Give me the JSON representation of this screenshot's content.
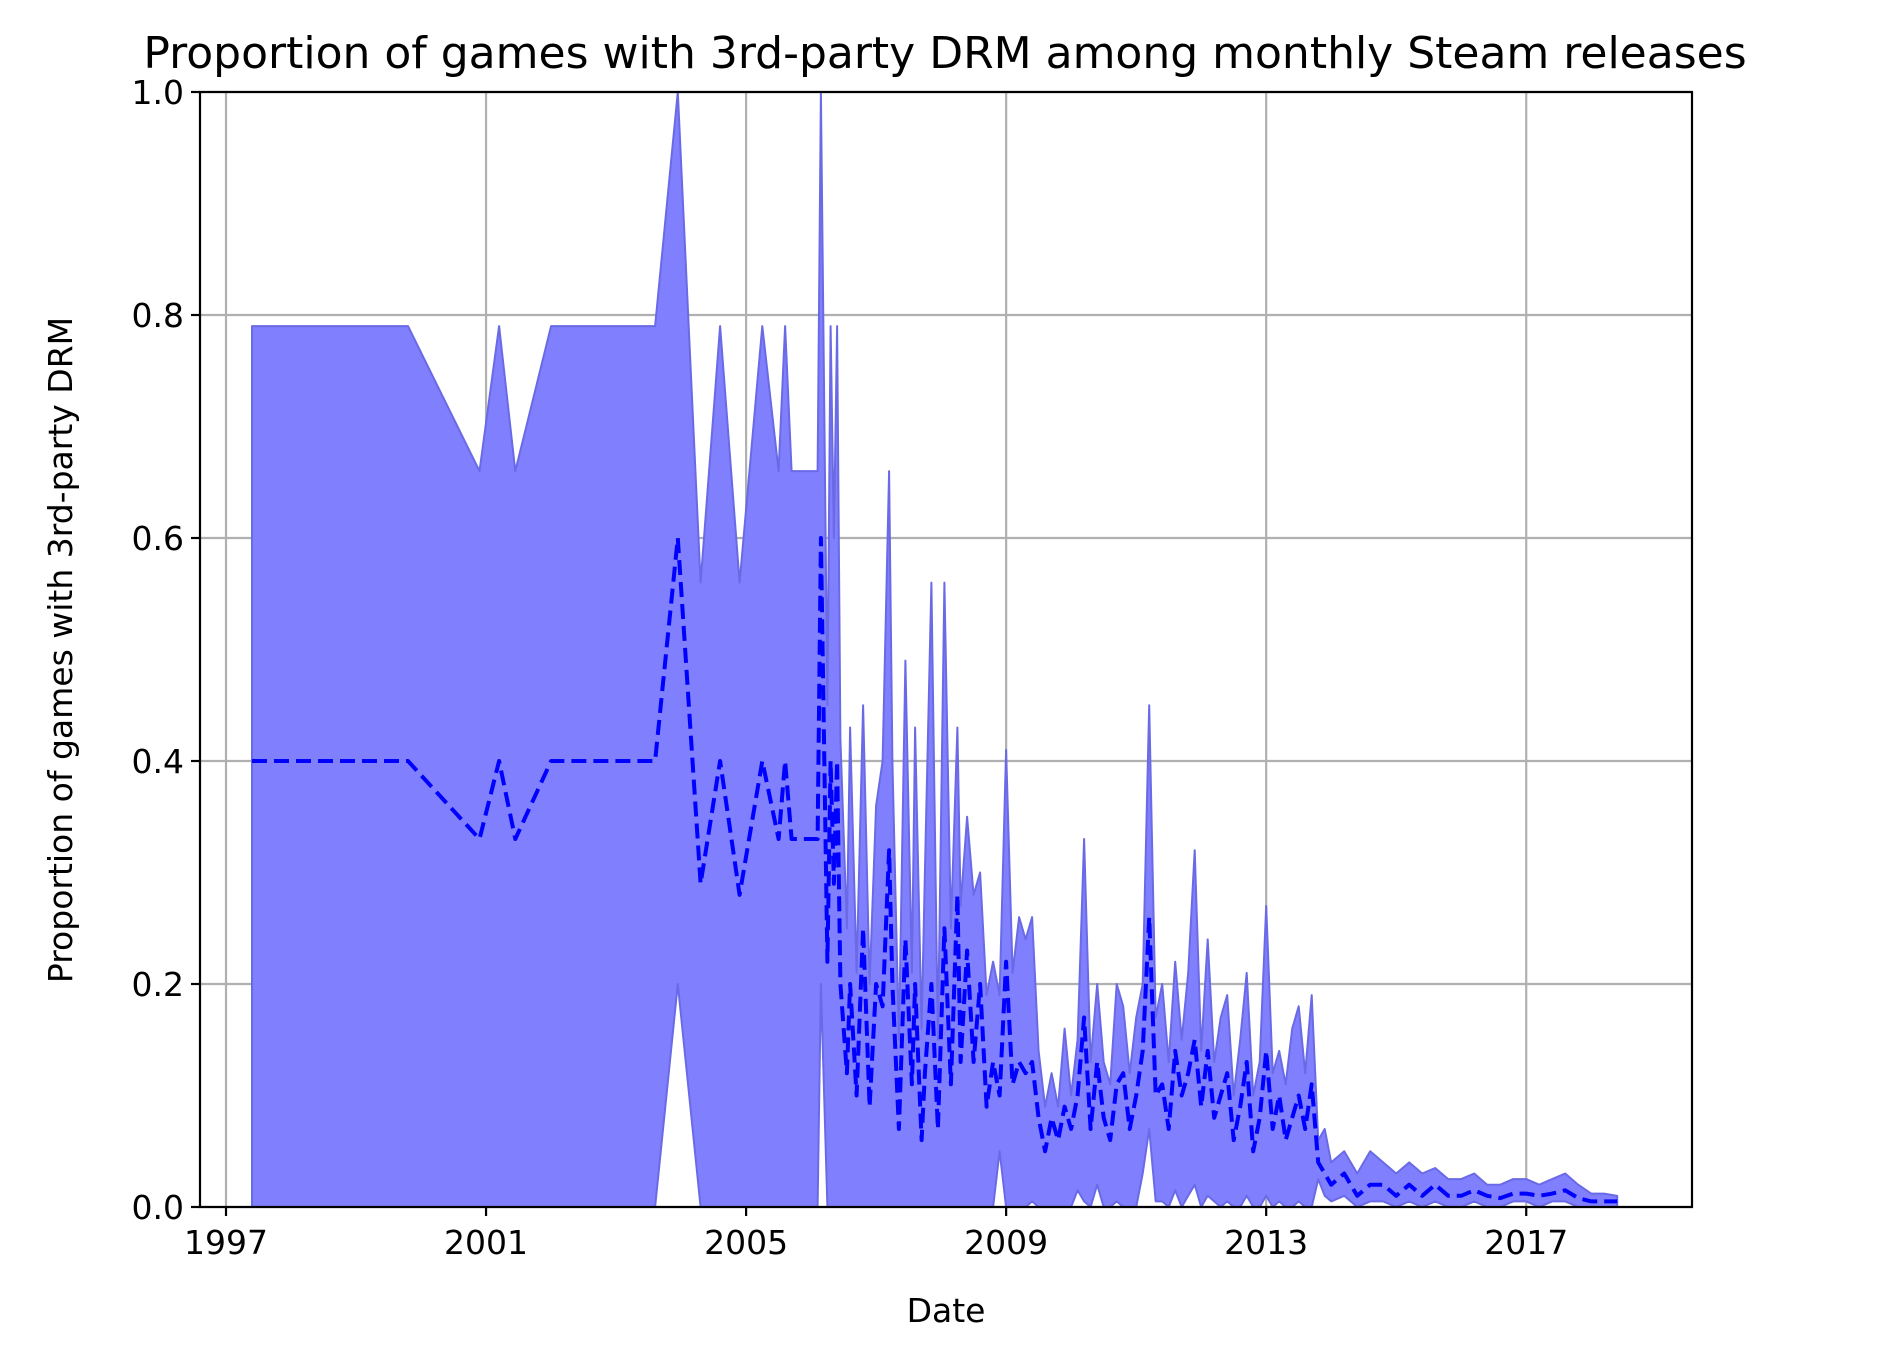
{
  "chart_data": {
    "type": "area",
    "title": "Proportion of games with 3rd-party DRM among monthly Steam releases",
    "xlabel": "Date",
    "ylabel": "Proportion of games with 3rd-party DRM",
    "xlim": [
      1996.6,
      2019.55
    ],
    "ylim": [
      0.0,
      1.0
    ],
    "grid": true,
    "x_ticks": [
      "1997",
      "2001",
      "2005",
      "2009",
      "2013",
      "2017"
    ],
    "y_ticks": [
      "0.0",
      "0.2",
      "0.4",
      "0.6",
      "0.8",
      "1.0"
    ],
    "colors": {
      "fill": "#8080ff",
      "edge": "#6a6ae6",
      "line": "#0000ff"
    },
    "series": [
      {
        "kind": "mean",
        "style": "dashed",
        "x": [
          1997.4,
          1999.8,
          2000.9,
          2001.2,
          2001.45,
          2002.0,
          2003.6,
          2003.95,
          2004.3,
          2004.6,
          2004.9,
          2005.25,
          2005.5,
          2005.6,
          2005.7,
          2005.85,
          2006.1,
          2006.15,
          2006.25,
          2006.3,
          2006.35,
          2006.4,
          2006.45,
          2006.55,
          2006.6,
          2006.7,
          2006.8,
          2006.9,
          2007.0,
          2007.1,
          2007.2,
          2007.25,
          2007.35,
          2007.45,
          2007.55,
          2007.6,
          2007.7,
          2007.75,
          2007.85,
          2007.95,
          2008.05,
          2008.15,
          2008.25,
          2008.3,
          2008.4,
          2008.5,
          2008.6,
          2008.7,
          2008.8,
          2008.9,
          2009.0,
          2009.1,
          2009.2,
          2009.3,
          2009.4,
          2009.5,
          2009.6,
          2009.7,
          2009.8,
          2009.9,
          2010.0,
          2010.1,
          2010.2,
          2010.3,
          2010.4,
          2010.5,
          2010.6,
          2010.7,
          2010.8,
          2010.9,
          2011.0,
          2011.1,
          2011.2,
          2011.3,
          2011.4,
          2011.5,
          2011.6,
          2011.7,
          2011.8,
          2011.9,
          2012.0,
          2012.1,
          2012.2,
          2012.3,
          2012.4,
          2012.5,
          2012.6,
          2012.7,
          2012.8,
          2012.9,
          2013.0,
          2013.1,
          2013.2,
          2013.3,
          2013.4,
          2013.5,
          2013.6,
          2013.7,
          2013.8,
          2013.9,
          2014.0,
          2014.2,
          2014.4,
          2014.6,
          2014.8,
          2015.0,
          2015.2,
          2015.4,
          2015.6,
          2015.8,
          2016.0,
          2016.2,
          2016.4,
          2016.6,
          2016.8,
          2017.0,
          2017.2,
          2017.4,
          2017.6,
          2017.8,
          2018.0,
          2018.2,
          2018.4
        ],
        "y": [
          0.4,
          0.4,
          0.33,
          0.4,
          0.33,
          0.4,
          0.4,
          0.6,
          0.29,
          0.4,
          0.28,
          0.4,
          0.33,
          0.4,
          0.33,
          0.33,
          0.33,
          0.6,
          0.22,
          0.4,
          0.29,
          0.4,
          0.2,
          0.12,
          0.2,
          0.1,
          0.25,
          0.09,
          0.2,
          0.18,
          0.32,
          0.2,
          0.07,
          0.24,
          0.11,
          0.2,
          0.06,
          0.12,
          0.2,
          0.07,
          0.25,
          0.11,
          0.28,
          0.13,
          0.23,
          0.13,
          0.2,
          0.09,
          0.13,
          0.1,
          0.22,
          0.11,
          0.13,
          0.12,
          0.13,
          0.08,
          0.05,
          0.08,
          0.06,
          0.09,
          0.07,
          0.1,
          0.17,
          0.07,
          0.13,
          0.08,
          0.06,
          0.11,
          0.12,
          0.07,
          0.1,
          0.14,
          0.26,
          0.1,
          0.11,
          0.07,
          0.14,
          0.1,
          0.12,
          0.15,
          0.09,
          0.14,
          0.08,
          0.1,
          0.12,
          0.06,
          0.09,
          0.13,
          0.05,
          0.08,
          0.14,
          0.07,
          0.1,
          0.06,
          0.08,
          0.1,
          0.07,
          0.11,
          0.04,
          0.03,
          0.02,
          0.03,
          0.01,
          0.02,
          0.02,
          0.01,
          0.02,
          0.01,
          0.02,
          0.01,
          0.01,
          0.015,
          0.01,
          0.008,
          0.012,
          0.012,
          0.01,
          0.012,
          0.015,
          0.008,
          0.005,
          0.005,
          0.005
        ]
      },
      {
        "kind": "upper-bound",
        "x": [
          1997.4,
          1999.8,
          2000.9,
          2001.2,
          2001.45,
          2002.0,
          2003.6,
          2003.95,
          2004.3,
          2004.6,
          2004.9,
          2005.25,
          2005.5,
          2005.6,
          2005.7,
          2005.85,
          2006.1,
          2006.15,
          2006.25,
          2006.3,
          2006.35,
          2006.4,
          2006.45,
          2006.55,
          2006.6,
          2006.7,
          2006.8,
          2006.9,
          2007.0,
          2007.1,
          2007.2,
          2007.25,
          2007.35,
          2007.45,
          2007.55,
          2007.6,
          2007.7,
          2007.75,
          2007.85,
          2007.95,
          2008.05,
          2008.15,
          2008.25,
          2008.3,
          2008.4,
          2008.5,
          2008.6,
          2008.7,
          2008.8,
          2008.9,
          2009.0,
          2009.1,
          2009.2,
          2009.3,
          2009.4,
          2009.5,
          2009.6,
          2009.7,
          2009.8,
          2009.9,
          2010.0,
          2010.1,
          2010.2,
          2010.3,
          2010.4,
          2010.5,
          2010.6,
          2010.7,
          2010.8,
          2010.9,
          2011.0,
          2011.1,
          2011.2,
          2011.3,
          2011.4,
          2011.5,
          2011.6,
          2011.7,
          2011.8,
          2011.9,
          2012.0,
          2012.1,
          2012.2,
          2012.3,
          2012.4,
          2012.5,
          2012.6,
          2012.7,
          2012.8,
          2012.9,
          2013.0,
          2013.1,
          2013.2,
          2013.3,
          2013.4,
          2013.5,
          2013.6,
          2013.7,
          2013.8,
          2013.9,
          2014.0,
          2014.2,
          2014.4,
          2014.6,
          2014.8,
          2015.0,
          2015.2,
          2015.4,
          2015.6,
          2015.8,
          2016.0,
          2016.2,
          2016.4,
          2016.6,
          2016.8,
          2017.0,
          2017.2,
          2017.4,
          2017.6,
          2017.8,
          2018.0,
          2018.2,
          2018.4
        ],
        "y": [
          0.79,
          0.79,
          0.66,
          0.79,
          0.66,
          0.79,
          0.79,
          1.0,
          0.56,
          0.79,
          0.56,
          0.79,
          0.66,
          0.79,
          0.66,
          0.66,
          0.66,
          1.0,
          0.45,
          0.79,
          0.6,
          0.79,
          0.42,
          0.25,
          0.43,
          0.21,
          0.45,
          0.2,
          0.36,
          0.4,
          0.66,
          0.4,
          0.15,
          0.49,
          0.21,
          0.43,
          0.16,
          0.3,
          0.56,
          0.15,
          0.56,
          0.25,
          0.43,
          0.27,
          0.35,
          0.28,
          0.3,
          0.19,
          0.22,
          0.19,
          0.41,
          0.21,
          0.26,
          0.24,
          0.26,
          0.14,
          0.09,
          0.12,
          0.09,
          0.16,
          0.1,
          0.15,
          0.33,
          0.13,
          0.2,
          0.13,
          0.11,
          0.2,
          0.18,
          0.12,
          0.17,
          0.2,
          0.45,
          0.17,
          0.2,
          0.13,
          0.22,
          0.15,
          0.21,
          0.32,
          0.14,
          0.24,
          0.13,
          0.17,
          0.19,
          0.1,
          0.15,
          0.21,
          0.1,
          0.13,
          0.27,
          0.12,
          0.14,
          0.11,
          0.16,
          0.18,
          0.12,
          0.19,
          0.06,
          0.07,
          0.04,
          0.05,
          0.03,
          0.05,
          0.04,
          0.03,
          0.04,
          0.03,
          0.035,
          0.025,
          0.025,
          0.03,
          0.02,
          0.02,
          0.025,
          0.025,
          0.02,
          0.025,
          0.03,
          0.02,
          0.012,
          0.012,
          0.01
        ]
      },
      {
        "kind": "lower-bound",
        "x": [
          1997.4,
          1999.8,
          2000.9,
          2001.2,
          2001.45,
          2002.0,
          2003.6,
          2003.95,
          2004.3,
          2004.6,
          2004.9,
          2005.25,
          2005.5,
          2005.6,
          2005.7,
          2005.85,
          2006.1,
          2006.15,
          2006.25,
          2006.3,
          2006.35,
          2006.4,
          2006.45,
          2006.55,
          2006.6,
          2006.7,
          2006.8,
          2006.9,
          2007.0,
          2007.1,
          2007.2,
          2007.25,
          2007.35,
          2007.45,
          2007.55,
          2007.6,
          2007.7,
          2007.75,
          2007.85,
          2007.95,
          2008.05,
          2008.15,
          2008.25,
          2008.3,
          2008.4,
          2008.5,
          2008.6,
          2008.7,
          2008.8,
          2008.9,
          2009.0,
          2009.1,
          2009.2,
          2009.3,
          2009.4,
          2009.5,
          2009.6,
          2009.7,
          2009.8,
          2009.9,
          2010.0,
          2010.1,
          2010.2,
          2010.3,
          2010.4,
          2010.5,
          2010.6,
          2010.7,
          2010.8,
          2010.9,
          2011.0,
          2011.1,
          2011.2,
          2011.3,
          2011.4,
          2011.5,
          2011.6,
          2011.7,
          2011.8,
          2011.9,
          2012.0,
          2012.1,
          2012.2,
          2012.3,
          2012.4,
          2012.5,
          2012.6,
          2012.7,
          2012.8,
          2012.9,
          2013.0,
          2013.1,
          2013.2,
          2013.3,
          2013.4,
          2013.5,
          2013.6,
          2013.7,
          2013.8,
          2013.9,
          2014.0,
          2014.2,
          2014.4,
          2014.6,
          2014.8,
          2015.0,
          2015.2,
          2015.4,
          2015.6,
          2015.8,
          2016.0,
          2016.2,
          2016.4,
          2016.6,
          2016.8,
          2017.0,
          2017.2,
          2017.4,
          2017.6,
          2017.8,
          2018.0,
          2018.2,
          2018.4
        ],
        "y": [
          0.0,
          0.0,
          0.0,
          0.0,
          0.0,
          0.0,
          0.0,
          0.2,
          0.0,
          0.0,
          0.0,
          0.0,
          0.0,
          0.0,
          0.0,
          0.0,
          0.0,
          0.2,
          0.0,
          0.0,
          0.0,
          0.0,
          0.0,
          0.0,
          0.0,
          0.0,
          0.0,
          0.0,
          0.0,
          0.0,
          0.0,
          0.0,
          0.0,
          0.0,
          0.0,
          0.0,
          0.0,
          0.0,
          0.0,
          0.0,
          0.0,
          0.0,
          0.0,
          0.0,
          0.0,
          0.0,
          0.0,
          0.0,
          0.0,
          0.05,
          0.0,
          0.0,
          0.0,
          0.0,
          0.005,
          0.0,
          0.0,
          0.0,
          0.0,
          0.0,
          0.0,
          0.015,
          0.005,
          0.0,
          0.02,
          0.0,
          0.0,
          0.005,
          0.0,
          0.0,
          0.0,
          0.03,
          0.07,
          0.005,
          0.005,
          0.0,
          0.015,
          0.0,
          0.01,
          0.02,
          0.0,
          0.01,
          0.005,
          0.0,
          0.005,
          0.0,
          0.0,
          0.01,
          0.0,
          0.0,
          0.01,
          0.0,
          0.005,
          0.0,
          0.0,
          0.005,
          0.0,
          0.0,
          0.025,
          0.01,
          0.005,
          0.01,
          0.0,
          0.005,
          0.005,
          0.0,
          0.005,
          0.0,
          0.005,
          0.0,
          0.0,
          0.005,
          0.0,
          0.0,
          0.005,
          0.005,
          0.0,
          0.005,
          0.005,
          0.0,
          0.0,
          0.0,
          0.0
        ]
      }
    ]
  }
}
